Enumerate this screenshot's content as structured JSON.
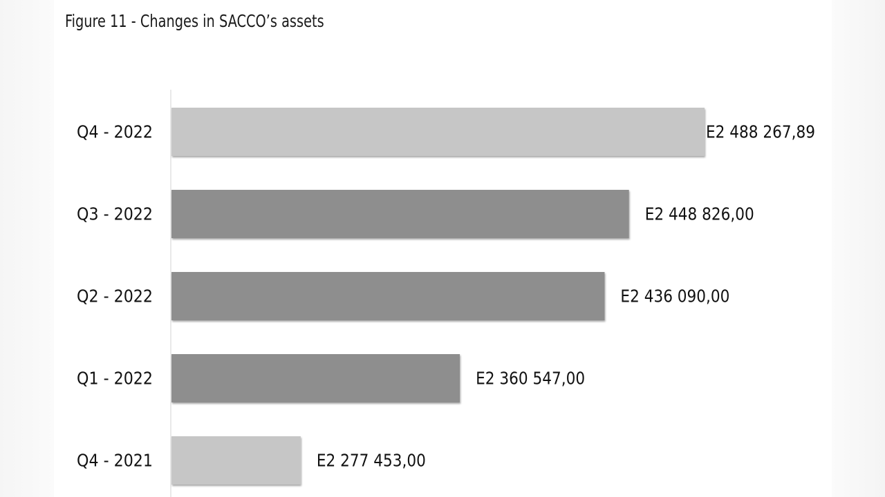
{
  "figure": {
    "title": "Figure 11 - Changes in SACCO’s assets"
  },
  "chart_data": {
    "type": "bar",
    "orientation": "horizontal",
    "title": "Figure 11 - Changes in SACCO’s assets",
    "xlabel": "",
    "ylabel": "",
    "categories": [
      "Q4 - 2022",
      "Q3 - 2022",
      "Q2 - 2022",
      "Q1 - 2022",
      "Q4 - 2021"
    ],
    "values": [
      2488267.89,
      2448826.0,
      2436090.0,
      2360547.0,
      2277453.0
    ],
    "value_labels": [
      "E2 488 267,89",
      "E2 448 826,00",
      "E2 436 090,00",
      "E2 360 547,00",
      "E2 277 453,00"
    ],
    "bar_colors": [
      "#c6c6c6",
      "#8e8e8e",
      "#8e8e8e",
      "#8e8e8e",
      "#c6c6c6"
    ],
    "xlim": [
      2210000,
      2500000
    ],
    "grid": false,
    "legend": "none"
  }
}
